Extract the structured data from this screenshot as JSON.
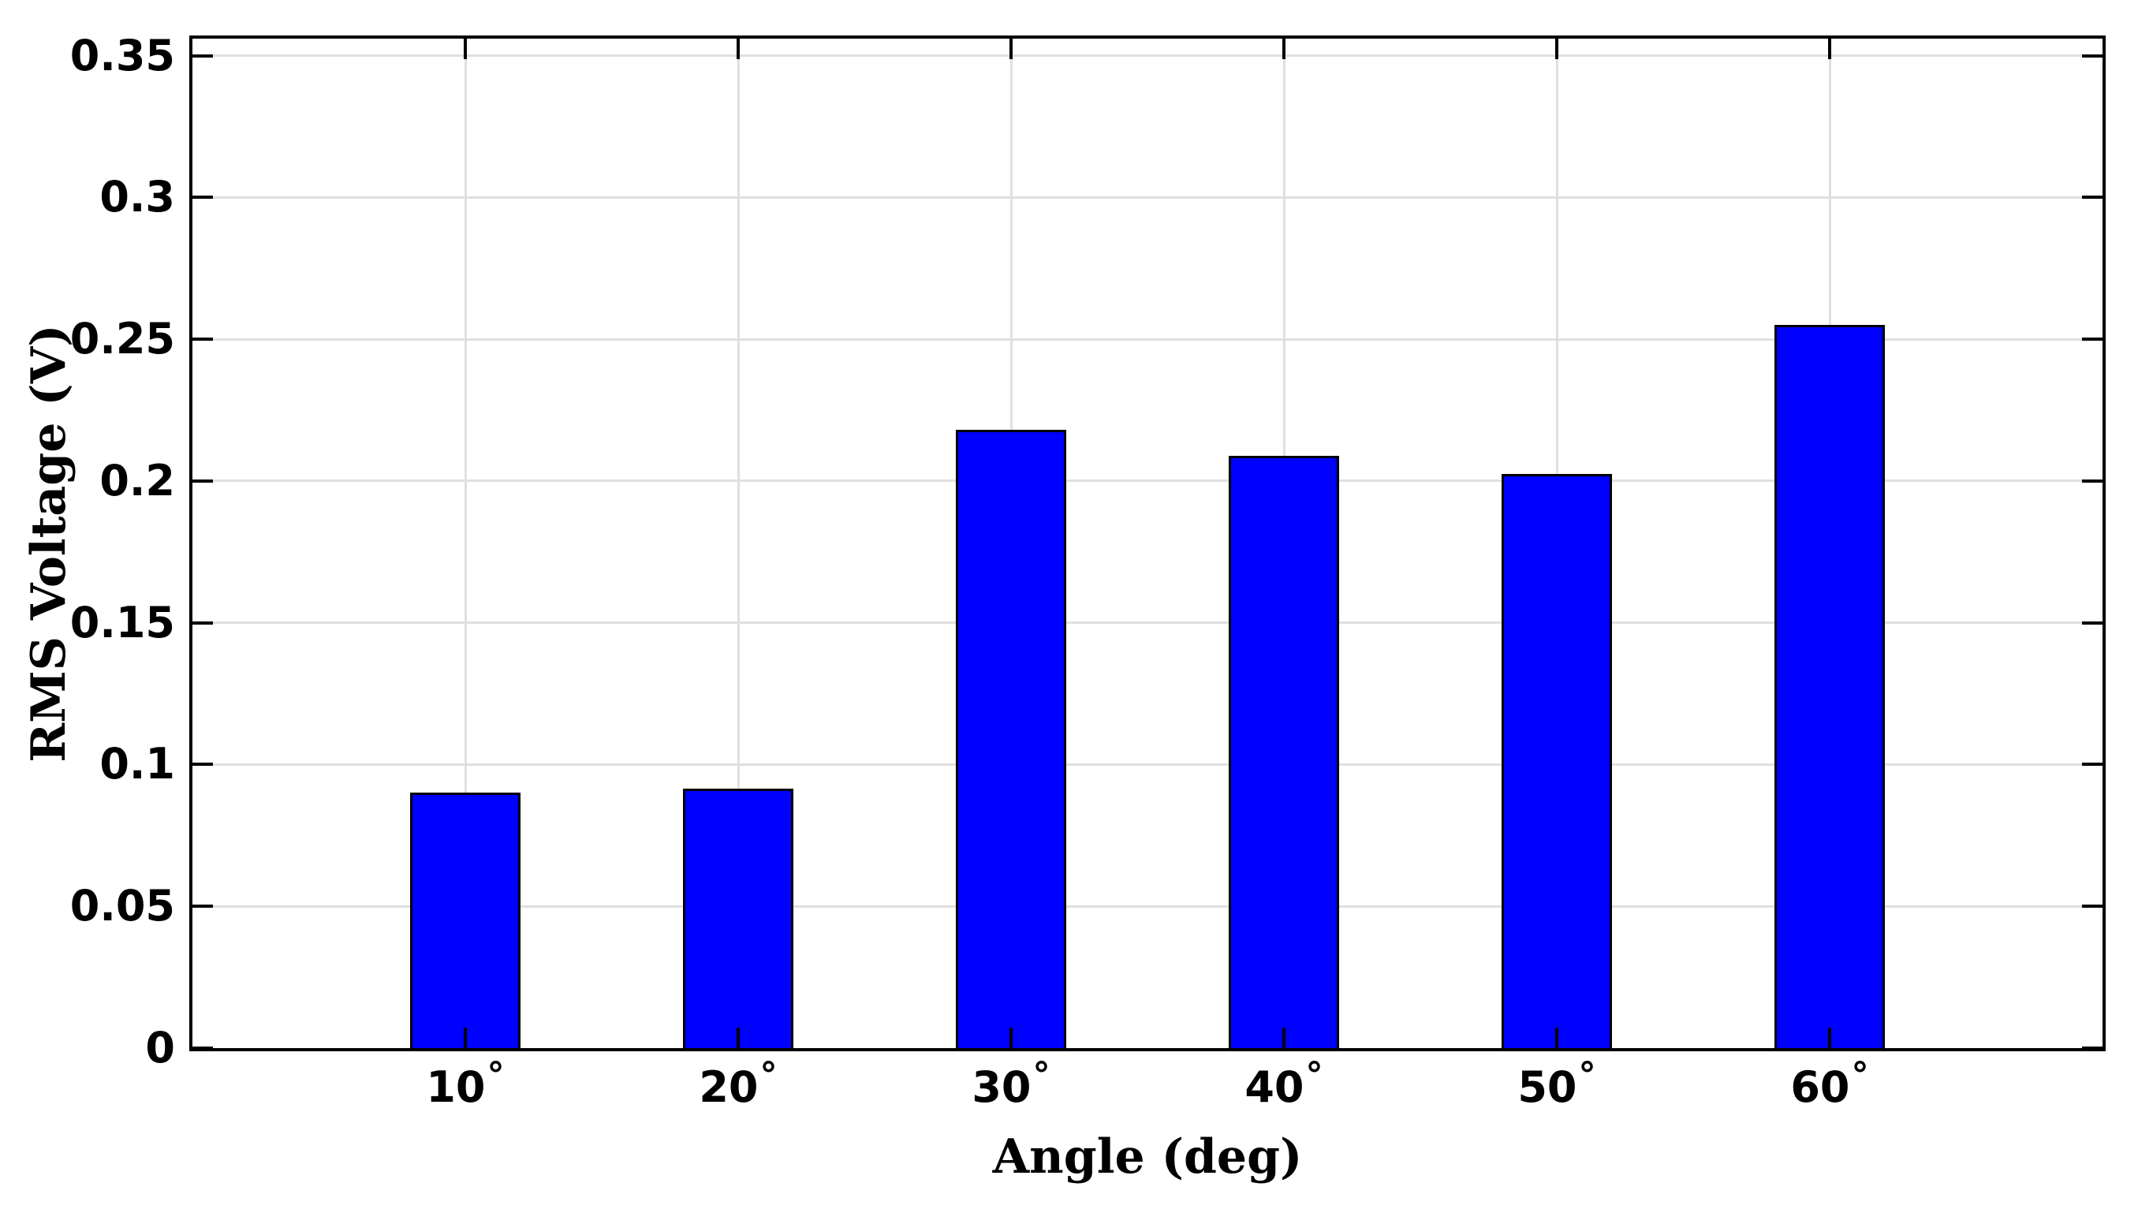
{
  "chart_data": {
    "type": "bar",
    "title": "",
    "xlabel": "Angle (deg)",
    "ylabel": "RMS Voltage (V)",
    "categories": [
      "10",
      "20",
      "30",
      "40",
      "50",
      "60"
    ],
    "degree_suffix": "°",
    "x_values_deg": [
      10,
      20,
      30,
      40,
      50,
      60
    ],
    "values": [
      0.09,
      0.0915,
      0.218,
      0.209,
      0.2025,
      0.255
    ],
    "xlim": [
      0,
      70
    ],
    "ylim": [
      0,
      0.356
    ],
    "yticks": [
      0,
      0.05,
      0.1,
      0.15,
      0.2,
      0.25,
      0.3,
      0.35
    ],
    "ytick_labels": [
      "0",
      "0.05",
      "0.1",
      "0.15",
      "0.2",
      "0.25",
      "0.3",
      "0.35"
    ],
    "grid": true,
    "legend_position": "none",
    "bar_color": "#0000ff",
    "bar_edge_color": "#000000",
    "grid_color": "#e0e0e0",
    "axis_color": "#000000",
    "background_color": "#ffffff"
  }
}
